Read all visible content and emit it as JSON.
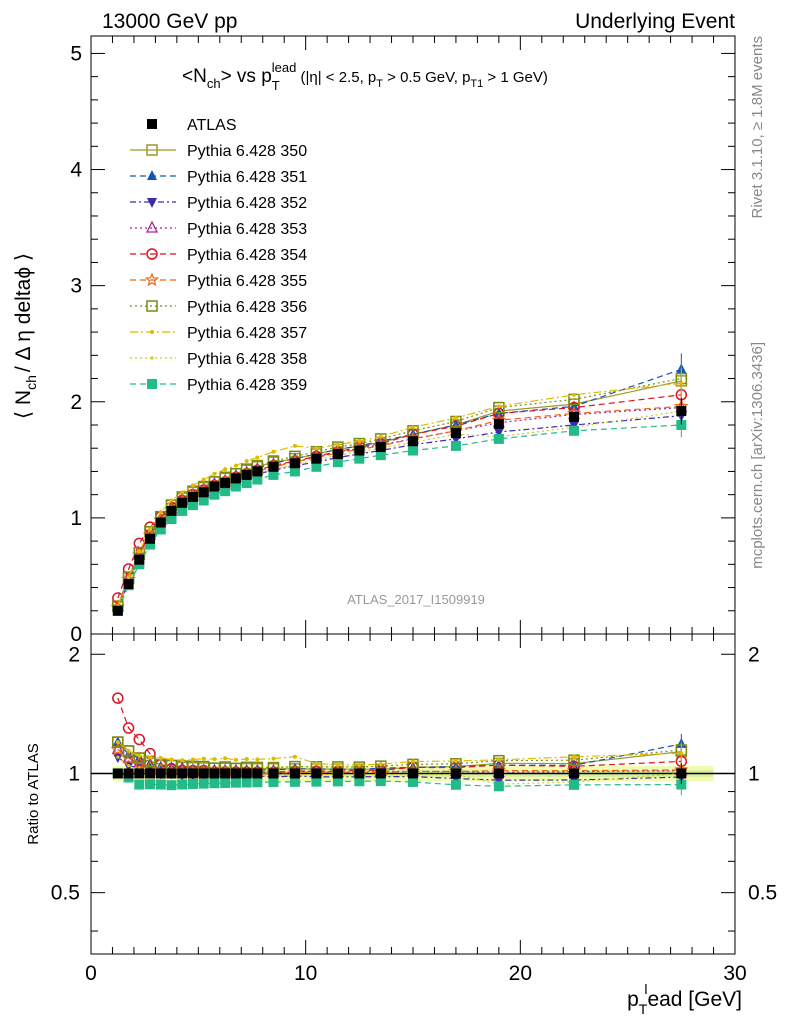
{
  "header": {
    "left": "13000 GeV pp",
    "right": "Underlying Event"
  },
  "side_labels": {
    "rivet": "Rivet 3.1.10, ≥ 1.8M events",
    "mcplots": "mcplots.cern.ch [arXiv:1306.3436]"
  },
  "watermark": "ATLAS_2017_I1509919",
  "chart_data": {
    "type": "scatter",
    "title": {
      "main": "<N",
      "main_sub": "ch",
      "main_mid": "> vs p",
      "main_sub2": "T",
      "main_sup2": "lead",
      "cut": " (|η| < 2.5, p",
      "cut_sub1": "T",
      "cut_mid": " > 0.5 GeV, p",
      "cut_sub2": "T1",
      "cut_end": " > 1 GeV)"
    },
    "ylabel": {
      "pre": "⟨ N",
      "sub": "ch",
      "post": "/ Δ η deltaϕ ⟩"
    },
    "xlabel": {
      "pre": "p",
      "sub": "T",
      "sup": "l",
      "post": "ead [GeV]"
    },
    "ratio_ylabel": "Ratio to ATLAS",
    "xlim": [
      0,
      30
    ],
    "ylim": [
      0,
      5.15
    ],
    "ratio_ylim": [
      0.35,
      2.25
    ],
    "x_ticks": [
      "0",
      "10",
      "20",
      "30"
    ],
    "y_ticks": [
      "0",
      "1",
      "2",
      "3",
      "4",
      "5"
    ],
    "ratio_ticks": [
      "0.5",
      "1",
      "2"
    ],
    "legend_position": "top-left",
    "x": [
      1.25,
      1.75,
      2.25,
      2.75,
      3.25,
      3.75,
      4.25,
      4.75,
      5.25,
      5.75,
      6.25,
      6.75,
      7.25,
      7.75,
      8.5,
      9.5,
      10.5,
      11.5,
      12.5,
      13.5,
      15.0,
      17.0,
      19.0,
      22.5,
      27.5
    ],
    "series": [
      {
        "name": "ATLAS",
        "color": "#000000",
        "marker": "square",
        "dash": "none",
        "values": [
          0.2,
          0.43,
          0.64,
          0.82,
          0.96,
          1.06,
          1.13,
          1.18,
          1.22,
          1.27,
          1.3,
          1.34,
          1.37,
          1.4,
          1.44,
          1.47,
          1.51,
          1.55,
          1.58,
          1.61,
          1.66,
          1.73,
          1.81,
          1.87,
          1.92
        ]
      },
      {
        "name": "Pythia 6.428 350",
        "color": "#9a9a2a",
        "marker": "square-open",
        "dash": "none",
        "values": [
          0.24,
          0.49,
          0.7,
          0.88,
          1.01,
          1.11,
          1.17,
          1.22,
          1.26,
          1.31,
          1.34,
          1.38,
          1.41,
          1.44,
          1.48,
          1.51,
          1.55,
          1.59,
          1.62,
          1.65,
          1.72,
          1.8,
          1.92,
          1.98,
          2.18
        ]
      },
      {
        "name": "Pythia 6.428 351",
        "color": "#1155bb",
        "marker": "triangle-up",
        "dash": "6,4",
        "values": [
          0.24,
          0.48,
          0.7,
          0.87,
          1.0,
          1.1,
          1.17,
          1.21,
          1.25,
          1.3,
          1.33,
          1.37,
          1.4,
          1.43,
          1.47,
          1.51,
          1.55,
          1.59,
          1.62,
          1.66,
          1.72,
          1.8,
          1.9,
          1.96,
          2.28
        ]
      },
      {
        "name": "Pythia 6.428 352",
        "color": "#3a2ab0",
        "marker": "triangle-down",
        "dash": "6,3,2,3",
        "values": [
          0.22,
          0.45,
          0.66,
          0.83,
          0.96,
          1.06,
          1.12,
          1.17,
          1.21,
          1.25,
          1.29,
          1.32,
          1.35,
          1.38,
          1.41,
          1.45,
          1.48,
          1.52,
          1.55,
          1.58,
          1.63,
          1.68,
          1.74,
          1.8,
          1.88
        ]
      },
      {
        "name": "Pythia 6.428 353",
        "color": "#aa2299",
        "marker": "triangle-open",
        "dash": "2,3",
        "values": [
          0.23,
          0.47,
          0.68,
          0.85,
          0.98,
          1.08,
          1.15,
          1.19,
          1.23,
          1.28,
          1.31,
          1.35,
          1.38,
          1.41,
          1.45,
          1.48,
          1.53,
          1.56,
          1.6,
          1.63,
          1.68,
          1.75,
          1.82,
          1.89,
          1.95
        ]
      },
      {
        "name": "Pythia 6.428 354",
        "color": "#dd1122",
        "marker": "circle-open",
        "dash": "6,4",
        "values": [
          0.31,
          0.56,
          0.78,
          0.92,
          1.01,
          1.09,
          1.15,
          1.2,
          1.24,
          1.28,
          1.31,
          1.35,
          1.38,
          1.41,
          1.45,
          1.49,
          1.53,
          1.57,
          1.61,
          1.64,
          1.72,
          1.79,
          1.9,
          1.95,
          2.06
        ]
      },
      {
        "name": "Pythia 6.428 355",
        "color": "#ee6611",
        "marker": "star-open",
        "dash": "6,4",
        "values": [
          0.23,
          0.47,
          0.68,
          0.85,
          0.98,
          1.07,
          1.14,
          1.19,
          1.23,
          1.27,
          1.31,
          1.34,
          1.37,
          1.4,
          1.44,
          1.48,
          1.52,
          1.56,
          1.59,
          1.62,
          1.68,
          1.75,
          1.84,
          1.9,
          1.96
        ]
      },
      {
        "name": "Pythia 6.428 356",
        "color": "#7a8a11",
        "marker": "square-open",
        "dash": "2,3",
        "values": [
          0.24,
          0.49,
          0.7,
          0.88,
          1.01,
          1.11,
          1.18,
          1.23,
          1.27,
          1.31,
          1.35,
          1.38,
          1.42,
          1.45,
          1.49,
          1.53,
          1.57,
          1.61,
          1.64,
          1.68,
          1.75,
          1.83,
          1.95,
          2.02,
          2.2
        ]
      },
      {
        "name": "Pythia 6.428 357",
        "color": "#ddbb00",
        "marker": "dash-dot",
        "dash": "8,3,2,3",
        "values": [
          0.24,
          0.49,
          0.71,
          0.9,
          1.05,
          1.15,
          1.22,
          1.28,
          1.33,
          1.38,
          1.42,
          1.45,
          1.49,
          1.52,
          1.57,
          1.62,
          1.6,
          1.63,
          1.66,
          1.7,
          1.78,
          1.86,
          1.96,
          2.06,
          2.16
        ]
      },
      {
        "name": "Pythia 6.428 358",
        "color": "#cccc22",
        "marker": "dot",
        "dash": "2,3",
        "values": [
          0.22,
          0.45,
          0.66,
          0.83,
          0.96,
          1.05,
          1.12,
          1.17,
          1.21,
          1.25,
          1.29,
          1.32,
          1.35,
          1.38,
          1.42,
          1.46,
          1.5,
          1.54,
          1.57,
          1.6,
          1.65,
          1.72,
          1.7,
          1.78,
          1.92
        ]
      },
      {
        "name": "Pythia 6.428 359",
        "color": "#22bb88",
        "marker": "square",
        "dash": "6,4",
        "values": [
          0.2,
          0.42,
          0.6,
          0.77,
          0.9,
          0.99,
          1.06,
          1.11,
          1.15,
          1.2,
          1.23,
          1.27,
          1.3,
          1.33,
          1.37,
          1.4,
          1.44,
          1.48,
          1.51,
          1.54,
          1.58,
          1.62,
          1.68,
          1.75,
          1.8
        ]
      }
    ]
  }
}
